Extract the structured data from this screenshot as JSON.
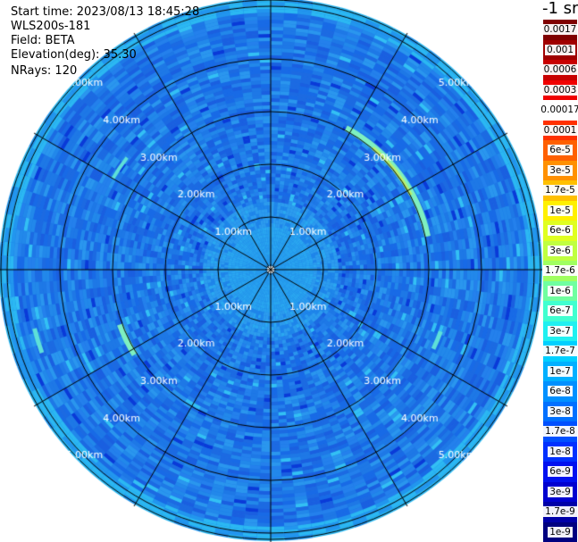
{
  "info": {
    "start_time": "Start time: 2023/08/13 18:45:28",
    "instrument": "WLS200s-181",
    "field": "Field: BETA",
    "elevation": "Elevation(deg): 35.30",
    "nrays": "NRays: 120"
  },
  "chart_data": {
    "type": "heatmap",
    "projection": "polar",
    "range_rings_km": [
      1,
      2,
      3,
      4,
      5
    ],
    "ring_labels": [
      "1.00km",
      "2.00km",
      "3.00km",
      "4.00km",
      "5.00km"
    ],
    "max_range_km": 5.1,
    "spoke_angles_deg": [
      0,
      30,
      60,
      90,
      120,
      150,
      180,
      210,
      240,
      270,
      300,
      330
    ],
    "ring_label_bearings_deg": [
      315,
      45,
      225,
      135
    ],
    "colorbar": {
      "unit": "-1 sr",
      "labels": [
        "0.0017",
        "0.001",
        "0.0006",
        "0.0003",
        "0.00017",
        "0.0001",
        "6e-5",
        "3e-5",
        "1.7e-5",
        "1e-5",
        "6e-6",
        "3e-6",
        "1.7e-6",
        "1e-6",
        "6e-7",
        "3e-7",
        "1.7e-7",
        "1e-7",
        "6e-8",
        "3e-8",
        "1.7e-8",
        "1e-8",
        "6e-9",
        "3e-9",
        "1.7e-9",
        "1e-9"
      ],
      "colors": [
        "#800000",
        "#a00000",
        "#c80000",
        "#f00000",
        "#ffffff",
        "#ff3000",
        "#ff6000",
        "#ff9000",
        "#ffc000",
        "#fff000",
        "#e0ff20",
        "#c0ff40",
        "#a0ff60",
        "#70ffa0",
        "#40ffd0",
        "#20f0f0",
        "#00d0ff",
        "#00b0ff",
        "#0090ff",
        "#0070ff",
        "#0050ff",
        "#0030ff",
        "#0010f0",
        "#0000d0",
        "#0000a8",
        "#000080"
      ]
    },
    "field_pattern": {
      "background": "#1e78e6",
      "near_core": "#2aa8f0",
      "inner_zone": "#1f6fe8",
      "outer_edge": "#2bb8f2",
      "arc_highlight": "#7ef0c0",
      "spot_dark": "#0a3ad8"
    }
  }
}
